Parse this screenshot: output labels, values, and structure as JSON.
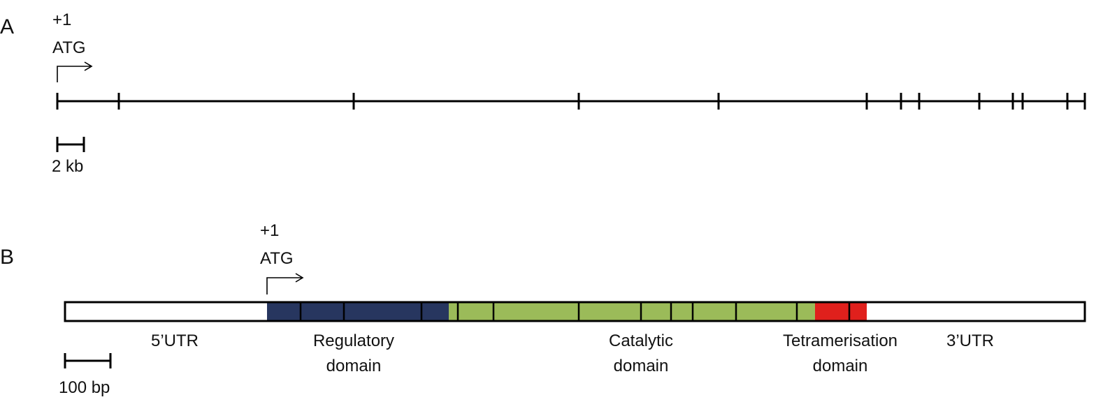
{
  "panel_a": {
    "label": "A",
    "start": {
      "position": "+1",
      "codon": "ATG"
    },
    "scale_bar": "2 kb"
  },
  "panel_b": {
    "label": "B",
    "start": {
      "position": "+1",
      "codon": "ATG"
    },
    "regions": [
      {
        "lines": [
          "5’UTR"
        ]
      },
      {
        "lines": [
          "Regulatory",
          "domain"
        ]
      },
      {
        "lines": [
          "Catalytic",
          "domain"
        ]
      },
      {
        "lines": [
          "Tetramerisation",
          "domain"
        ]
      },
      {
        "lines": [
          "3’UTR"
        ]
      }
    ],
    "scale_bar": "100 bp"
  }
}
